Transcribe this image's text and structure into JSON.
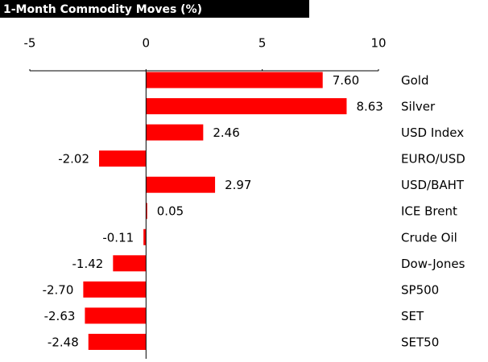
{
  "chart_data": {
    "type": "barh",
    "title": "1-Month Commodity Moves (%)",
    "categories": [
      "Gold",
      "Silver",
      "USD Index",
      "EURO/USD",
      "USD/BAHT",
      "ICE Brent",
      "Crude Oil",
      "Dow-Jones",
      "SP500",
      "SET",
      "SET50"
    ],
    "values": [
      7.6,
      8.63,
      2.46,
      -2.02,
      2.97,
      0.05,
      -0.11,
      -1.42,
      -2.7,
      -2.63,
      -2.48
    ],
    "value_labels": [
      "7.60",
      "8.63",
      "2.46",
      "-2.02",
      "2.97",
      "0.05",
      "-0.11",
      "-1.42",
      "-2.70",
      "-2.63",
      "-2.48"
    ],
    "color": "#ff0000",
    "xlim": [
      -5,
      10
    ],
    "xticks": [
      -5,
      0,
      5,
      10
    ]
  }
}
